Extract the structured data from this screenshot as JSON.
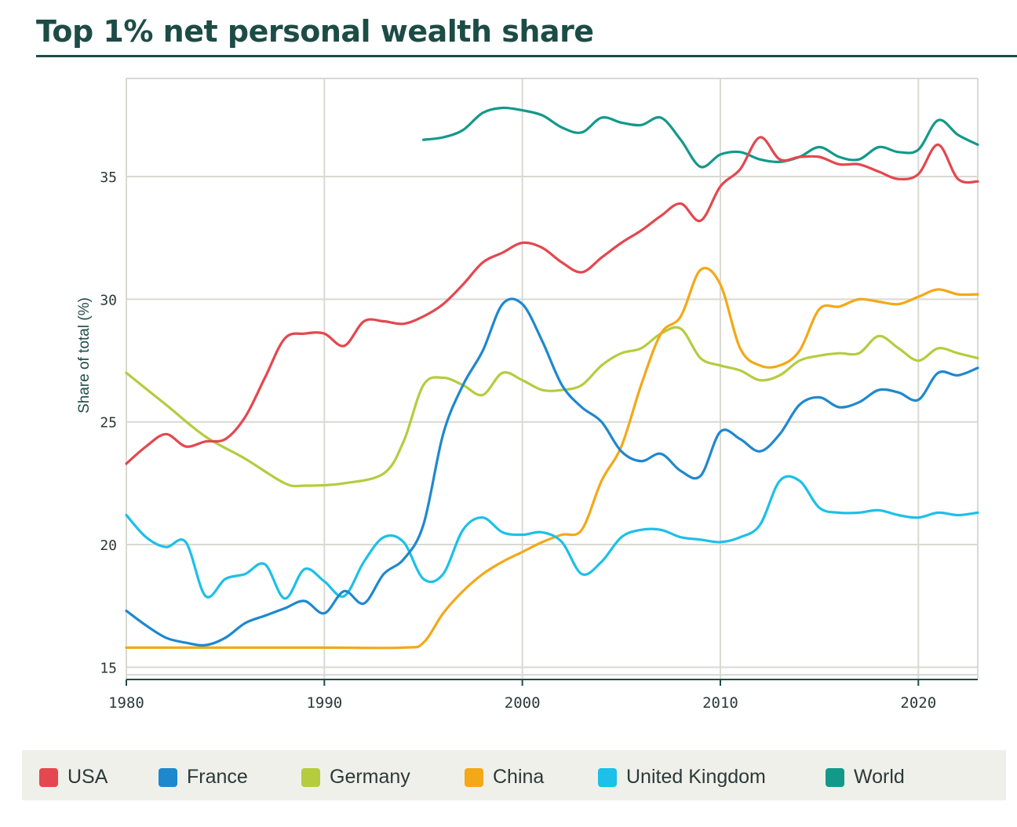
{
  "title": "Top 1% net personal wealth share",
  "chart_data": {
    "type": "line",
    "ylabel": "Share of total (%)",
    "xlim": [
      1980,
      2023
    ],
    "ylim": [
      14.5,
      39
    ],
    "xticks": [
      1980,
      1990,
      2000,
      2010,
      2020
    ],
    "yticks": [
      15,
      20,
      25,
      30,
      35
    ],
    "grid": true,
    "legend_position": "bottom",
    "series": [
      {
        "name": "USA",
        "color": "#e4474f",
        "x": [
          1980,
          1981,
          1982,
          1983,
          1984,
          1985,
          1986,
          1987,
          1988,
          1989,
          1990,
          1991,
          1992,
          1993,
          1994,
          1995,
          1996,
          1997,
          1998,
          1999,
          2000,
          2001,
          2002,
          2003,
          2004,
          2005,
          2006,
          2007,
          2008,
          2009,
          2010,
          2011,
          2012,
          2013,
          2014,
          2015,
          2016,
          2017,
          2018,
          2019,
          2020,
          2021,
          2022,
          2023
        ],
        "y": [
          23.3,
          24.0,
          24.5,
          24.0,
          24.2,
          24.3,
          25.2,
          26.8,
          28.4,
          28.6,
          28.6,
          28.1,
          29.1,
          29.1,
          29.0,
          29.3,
          29.8,
          30.6,
          31.5,
          31.9,
          32.3,
          32.1,
          31.5,
          31.1,
          31.7,
          32.3,
          32.8,
          33.4,
          33.9,
          33.2,
          34.6,
          35.3,
          36.6,
          35.7,
          35.8,
          35.8,
          35.5,
          35.5,
          35.2,
          34.9,
          35.1,
          36.3,
          34.9,
          34.8
        ]
      },
      {
        "name": "France",
        "color": "#1e88cf",
        "x": [
          1980,
          1981,
          1982,
          1983,
          1984,
          1985,
          1986,
          1987,
          1988,
          1989,
          1990,
          1991,
          1992,
          1993,
          1994,
          1995,
          1996,
          1997,
          1998,
          1999,
          2000,
          2001,
          2002,
          2003,
          2004,
          2005,
          2006,
          2007,
          2008,
          2009,
          2010,
          2011,
          2012,
          2013,
          2014,
          2015,
          2016,
          2017,
          2018,
          2019,
          2020,
          2021,
          2022,
          2023
        ],
        "y": [
          17.3,
          16.7,
          16.2,
          16.0,
          15.9,
          16.2,
          16.8,
          17.1,
          17.4,
          17.7,
          17.2,
          18.1,
          17.6,
          18.8,
          19.4,
          20.8,
          24.5,
          26.5,
          27.9,
          29.8,
          29.8,
          28.3,
          26.5,
          25.6,
          25.0,
          23.8,
          23.4,
          23.7,
          23.0,
          22.8,
          24.6,
          24.3,
          23.8,
          24.5,
          25.7,
          26.0,
          25.6,
          25.8,
          26.3,
          26.2,
          25.9,
          27.0,
          26.9,
          27.2
        ]
      },
      {
        "name": "Germany",
        "color": "#b5cc3f",
        "x": [
          1980,
          1982,
          1984,
          1986,
          1988,
          1989,
          1991,
          1993,
          1994,
          1995,
          1996,
          1997,
          1998,
          1999,
          2000,
          2001,
          2002,
          2003,
          2004,
          2005,
          2006,
          2007,
          2008,
          2009,
          2010,
          2011,
          2012,
          2013,
          2014,
          2015,
          2016,
          2017,
          2018,
          2019,
          2020,
          2021,
          2022,
          2023
        ],
        "y": [
          27.0,
          25.7,
          24.4,
          23.5,
          22.5,
          22.4,
          22.5,
          22.9,
          24.2,
          26.5,
          26.8,
          26.5,
          26.1,
          27.0,
          26.7,
          26.3,
          26.3,
          26.5,
          27.3,
          27.8,
          28.0,
          28.6,
          28.8,
          27.6,
          27.3,
          27.1,
          26.7,
          26.9,
          27.5,
          27.7,
          27.8,
          27.8,
          28.5,
          28.0,
          27.5,
          28.0,
          27.8,
          27.6
        ]
      },
      {
        "name": "China",
        "color": "#f4a817",
        "x": [
          1980,
          1985,
          1990,
          1994,
          1995,
          1996,
          1997,
          1998,
          1999,
          2000,
          2001,
          2002,
          2003,
          2004,
          2005,
          2006,
          2007,
          2008,
          2009,
          2010,
          2011,
          2012,
          2013,
          2014,
          2015,
          2016,
          2017,
          2018,
          2019,
          2020,
          2021,
          2022,
          2023
        ],
        "y": [
          15.8,
          15.8,
          15.8,
          15.8,
          16.0,
          17.2,
          18.1,
          18.8,
          19.3,
          19.7,
          20.1,
          20.4,
          20.6,
          22.6,
          24.0,
          26.5,
          28.6,
          29.3,
          31.2,
          30.6,
          28.0,
          27.3,
          27.3,
          27.9,
          29.6,
          29.7,
          30.0,
          29.9,
          29.8,
          30.1,
          30.4,
          30.2,
          30.2
        ]
      },
      {
        "name": "United Kingdom",
        "color": "#1cc0e8",
        "x": [
          1980,
          1981,
          1982,
          1983,
          1984,
          1985,
          1986,
          1987,
          1988,
          1989,
          1990,
          1991,
          1992,
          1993,
          1994,
          1995,
          1996,
          1997,
          1998,
          1999,
          2000,
          2001,
          2002,
          2003,
          2004,
          2005,
          2006,
          2007,
          2008,
          2009,
          2010,
          2011,
          2012,
          2013,
          2014,
          2015,
          2016,
          2017,
          2018,
          2019,
          2020,
          2021,
          2022,
          2023
        ],
        "y": [
          21.2,
          20.3,
          19.9,
          20.1,
          17.9,
          18.6,
          18.8,
          19.2,
          17.8,
          19.0,
          18.5,
          17.9,
          19.3,
          20.3,
          20.1,
          18.6,
          18.8,
          20.6,
          21.1,
          20.5,
          20.4,
          20.5,
          20.1,
          18.8,
          19.3,
          20.3,
          20.6,
          20.6,
          20.3,
          20.2,
          20.1,
          20.3,
          20.8,
          22.6,
          22.6,
          21.5,
          21.3,
          21.3,
          21.4,
          21.2,
          21.1,
          21.3,
          21.2,
          21.3
        ]
      },
      {
        "name": "World",
        "color": "#13998a",
        "x": [
          1995,
          1996,
          1997,
          1998,
          1999,
          2000,
          2001,
          2002,
          2003,
          2004,
          2005,
          2006,
          2007,
          2008,
          2009,
          2010,
          2011,
          2012,
          2013,
          2014,
          2015,
          2016,
          2017,
          2018,
          2019,
          2020,
          2021,
          2022,
          2023
        ],
        "y": [
          36.5,
          36.6,
          36.9,
          37.6,
          37.8,
          37.7,
          37.5,
          37.0,
          36.8,
          37.4,
          37.2,
          37.1,
          37.4,
          36.5,
          35.4,
          35.9,
          36.0,
          35.7,
          35.6,
          35.8,
          36.2,
          35.8,
          35.7,
          36.2,
          36.0,
          36.1,
          37.3,
          36.7,
          36.3
        ]
      }
    ]
  }
}
